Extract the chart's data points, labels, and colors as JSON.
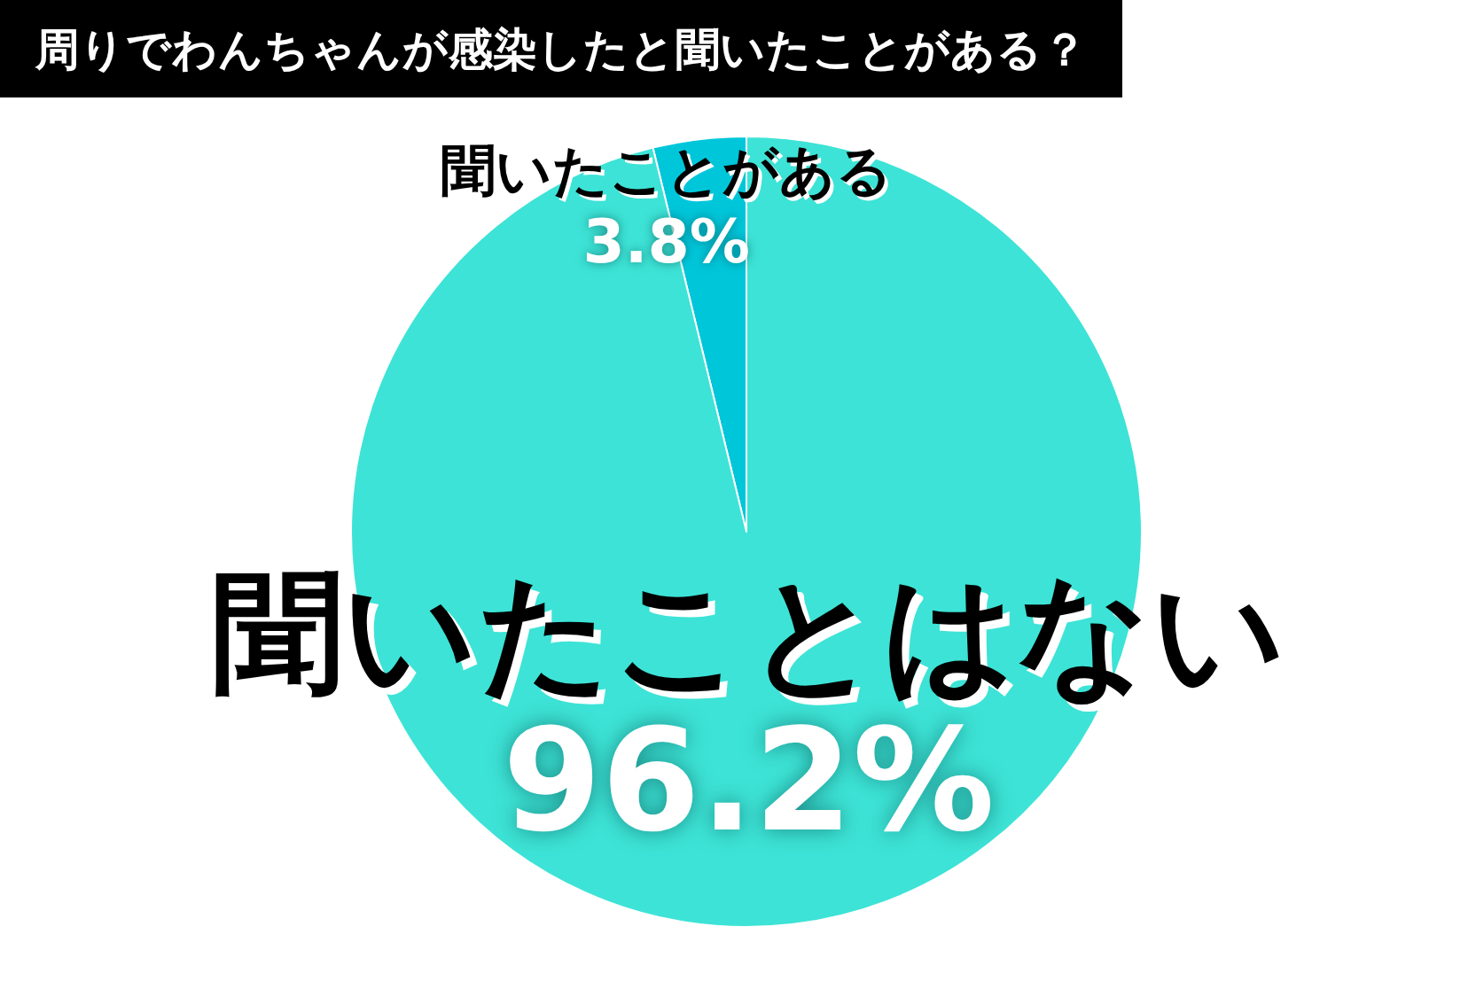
{
  "chart_data": {
    "type": "pie",
    "title": "周りでわんちゃんが感染したと聞いたことがある？",
    "categories": [
      "聞いたことがある",
      "聞いたことはない"
    ],
    "values": [
      3.8,
      96.2
    ],
    "colors": [
      "#00c6da",
      "#3de3d6"
    ],
    "value_labels": [
      "3.8%",
      "96.2%"
    ]
  }
}
